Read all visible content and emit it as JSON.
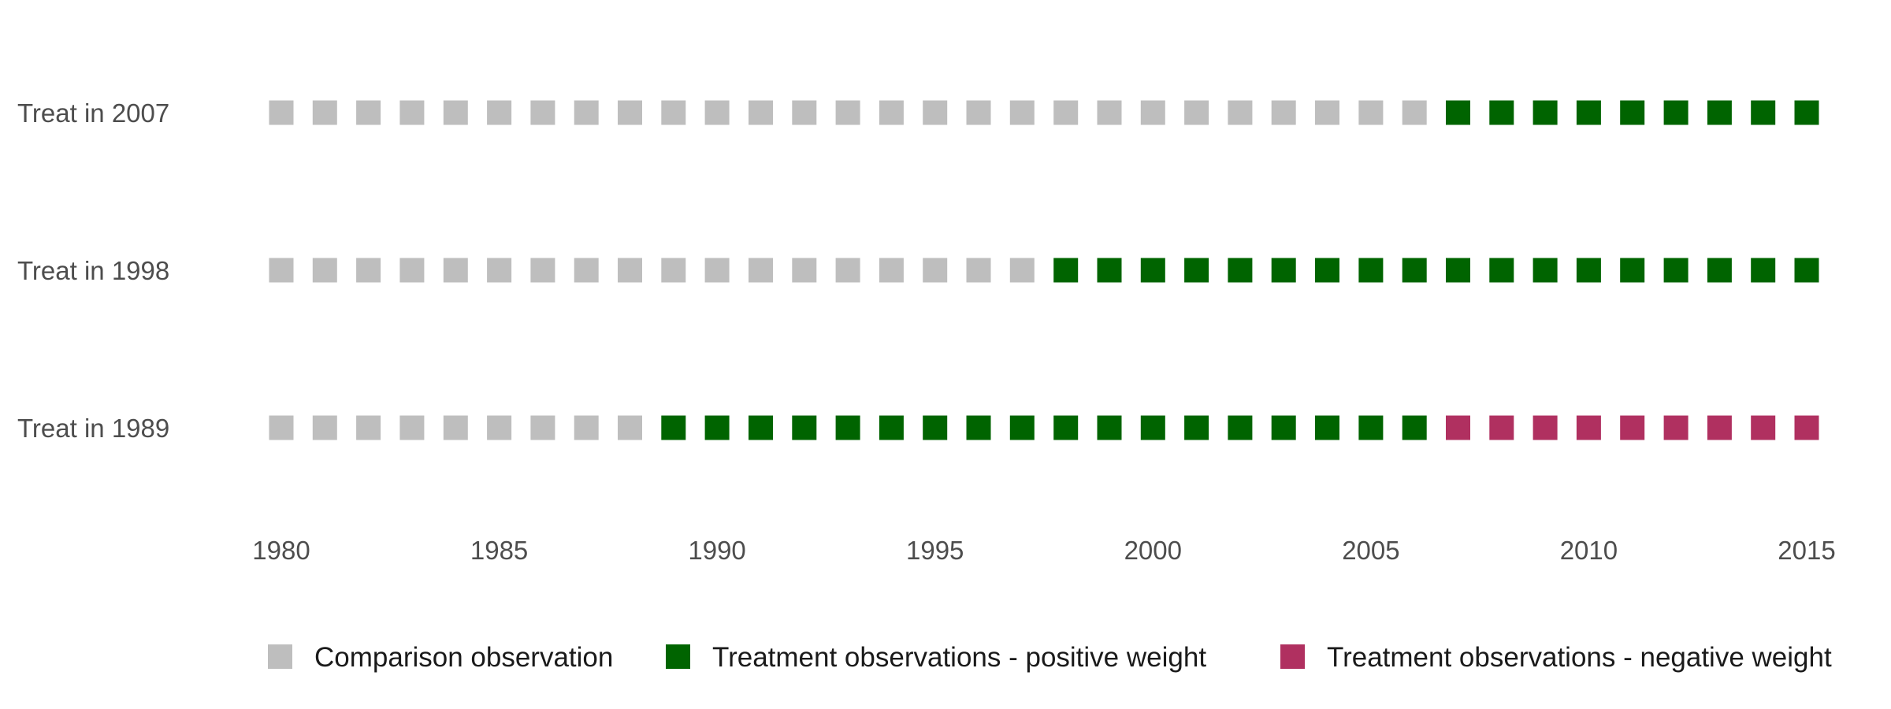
{
  "chart_data": {
    "type": "scatter",
    "title": "",
    "xlabel": "",
    "ylabel": "",
    "xlim": [
      1980,
      2015
    ],
    "x_ticks": [
      "1980",
      "1985",
      "1990",
      "1995",
      "2000",
      "2005",
      "2010",
      "2015"
    ],
    "marker": "square",
    "grid": false,
    "legend_position": "bottom",
    "legend": [
      {
        "key": "comparison",
        "label": "Comparison observation",
        "color": "#bebebe"
      },
      {
        "key": "positive",
        "label": "Treatment observations - positive weight",
        "color": "#006400"
      },
      {
        "key": "negative",
        "label": "Treatment observations - negative weight",
        "color": "#b03060"
      }
    ],
    "rows": [
      {
        "label": "Treat in 2007",
        "segments": [
          {
            "category": "comparison",
            "from": 1980,
            "to": 2006
          },
          {
            "category": "positive",
            "from": 2007,
            "to": 2015
          }
        ]
      },
      {
        "label": "Treat in 1998",
        "segments": [
          {
            "category": "comparison",
            "from": 1980,
            "to": 1997
          },
          {
            "category": "positive",
            "from": 1998,
            "to": 2015
          }
        ]
      },
      {
        "label": "Treat in 1989",
        "segments": [
          {
            "category": "comparison",
            "from": 1980,
            "to": 1988
          },
          {
            "category": "positive",
            "from": 1989,
            "to": 2006
          },
          {
            "category": "negative",
            "from": 2007,
            "to": 2015
          }
        ]
      }
    ]
  }
}
